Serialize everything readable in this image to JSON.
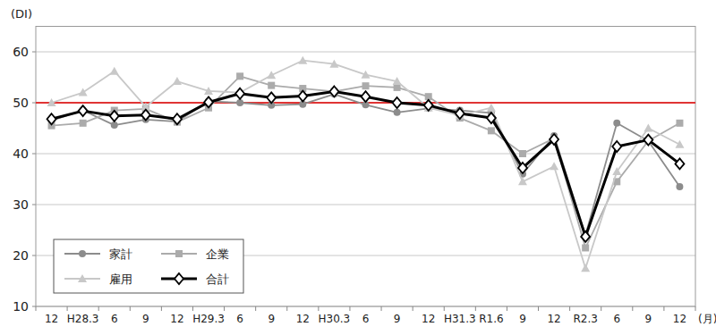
{
  "chart_data": {
    "type": "line",
    "y_label": "(DI)",
    "x_label": "(月)",
    "categories": [
      "12",
      "H28.3",
      "6",
      "9",
      "12",
      "H29.3",
      "6",
      "9",
      "12",
      "H30.3",
      "6",
      "9",
      "12",
      "H31.3",
      "R1.6",
      "9",
      "12",
      "R2.3",
      "6",
      "9",
      "12"
    ],
    "series": [
      {
        "name": "家計",
        "color": "#8c8c8c",
        "marker": "circle",
        "line_style": "solid",
        "values": [
          46.5,
          48.5,
          45.6,
          46.7,
          46.3,
          50.3,
          50,
          49.5,
          49.7,
          51.7,
          49.6,
          48.1,
          48.9,
          48.5,
          48,
          36,
          43.5,
          24,
          46,
          42.5,
          33.5
        ]
      },
      {
        "name": "企業",
        "color": "#ababab",
        "marker": "square",
        "line_style": "solid",
        "values": [
          45.5,
          46,
          48.5,
          48.8,
          46.2,
          49,
          55.2,
          53.4,
          52.8,
          52.2,
          53.3,
          53,
          51.2,
          47,
          44.5,
          40,
          43,
          21.5,
          34.5,
          42.5,
          46
        ]
      },
      {
        "name": "雇用",
        "color": "#c8c8c8",
        "marker": "triangle",
        "line_style": "solid",
        "values": [
          50,
          52,
          56.2,
          49.2,
          54.2,
          52.3,
          52,
          55.4,
          58.3,
          57.6,
          55.5,
          54.2,
          49,
          47.5,
          49,
          34.5,
          37.5,
          17.5,
          36.5,
          45,
          41.8
        ]
      },
      {
        "name": "合計",
        "color": "#000000",
        "marker": "diamond",
        "line_style": "bold",
        "values": [
          46.8,
          48.4,
          47.4,
          47.6,
          46.8,
          50.1,
          51.8,
          51,
          51.3,
          52.2,
          51.2,
          50,
          49.5,
          47.9,
          47,
          37.2,
          42.8,
          23.7,
          41.4,
          42.7,
          38
        ]
      }
    ],
    "hlines": [
      {
        "value": 50,
        "color": "#e03434"
      }
    ],
    "ylim": [
      10,
      65
    ],
    "yticks": [
      10,
      20,
      30,
      40,
      50,
      60
    ],
    "grid": true,
    "legend": "lower left"
  }
}
